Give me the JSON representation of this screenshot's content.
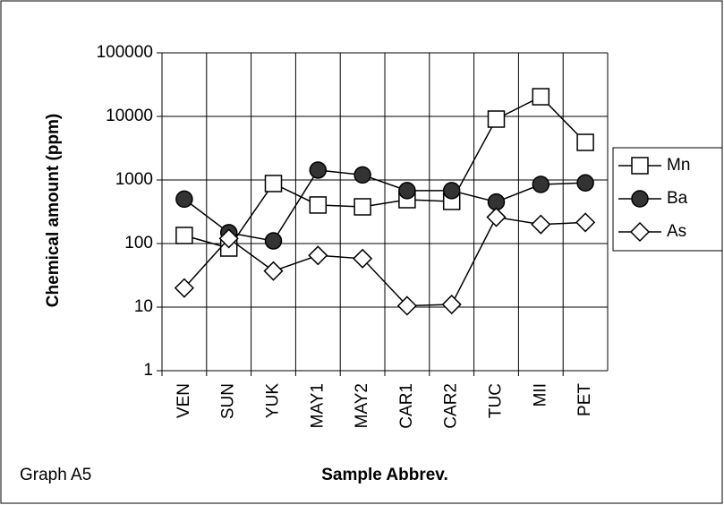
{
  "chart_data": {
    "type": "line",
    "log_scale": true,
    "grid": true,
    "xlabel": "Sample Abbrev.",
    "ylabel": "Chemical amount (ppm)",
    "annotation": "Graph A5",
    "categories": [
      "VEN",
      "SUN",
      "YUK",
      "MAY1",
      "MAY2",
      "CAR1",
      "CAR2",
      "TUC",
      "MII",
      "PET"
    ],
    "ylim": [
      1,
      100000
    ],
    "yticks": [
      1,
      10,
      100,
      1000,
      10000,
      100000
    ],
    "legend": "right",
    "series": [
      {
        "name": "Mn",
        "color": "#000000",
        "marker": "square",
        "marker_fill": "#ffffff",
        "values": [
          134,
          85,
          880,
          404,
          378,
          490,
          460,
          9070,
          20400,
          3900
        ]
      },
      {
        "name": "Ba",
        "color": "#000000",
        "marker": "circle",
        "marker_fill": "#333333",
        "values": [
          500,
          148,
          110,
          1430,
          1200,
          680,
          680,
          450,
          850,
          900
        ]
      },
      {
        "name": "As",
        "color": "#000000",
        "marker": "diamond",
        "marker_fill": "#ffffff",
        "values": [
          20,
          120,
          37,
          65,
          58,
          10.5,
          11,
          260,
          200,
          215
        ]
      }
    ]
  }
}
